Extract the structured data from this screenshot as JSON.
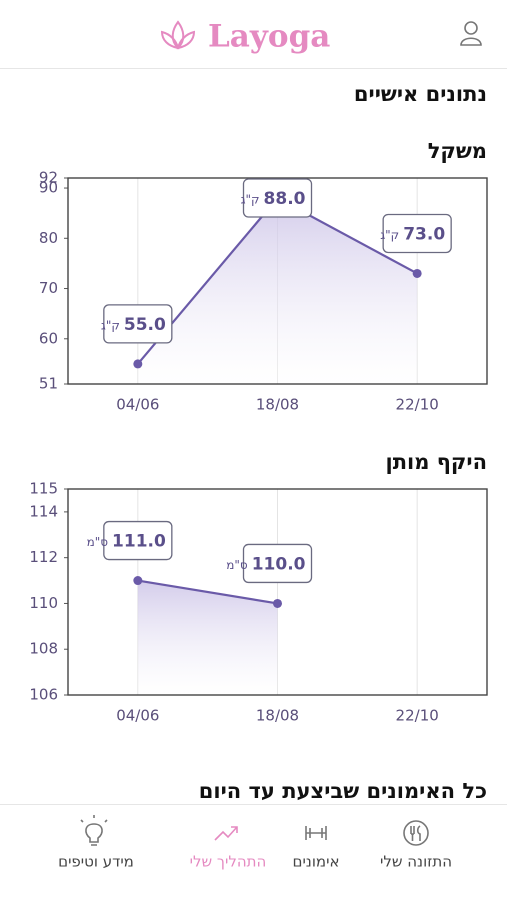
{
  "header": {
    "logo": "Layoga"
  },
  "page_title": "נתונים אישיים",
  "workouts_title": "כל האימונים שביצעת עד היום",
  "nav": [
    {
      "label": "התזונה שלי"
    },
    {
      "label": "אימונים"
    },
    {
      "label": "התהליך שלי"
    },
    {
      "label": "מידע וטיפים"
    }
  ],
  "chart_data": [
    {
      "type": "line",
      "title": "משקל",
      "unit": "ק\"ג",
      "color": "#6a5aa8",
      "categories": [
        "04/06",
        "18/08",
        "22/10"
      ],
      "values": [
        55,
        88,
        73
      ],
      "value_labels": [
        "55.0",
        "88.0",
        "73.0"
      ],
      "ylim": [
        51,
        92
      ],
      "yticks": [
        51,
        60,
        70,
        80,
        90,
        92
      ],
      "grid": true
    },
    {
      "type": "line",
      "title": "היקף מותן",
      "unit": "ס\"מ",
      "color": "#6a5aa8",
      "categories": [
        "04/06",
        "18/08",
        "22/10"
      ],
      "values": [
        111,
        110,
        null
      ],
      "value_labels": [
        "111.0",
        "110.0",
        null
      ],
      "ylim": [
        106,
        115
      ],
      "yticks": [
        106,
        108,
        110,
        112,
        114,
        115
      ],
      "grid": true
    }
  ]
}
